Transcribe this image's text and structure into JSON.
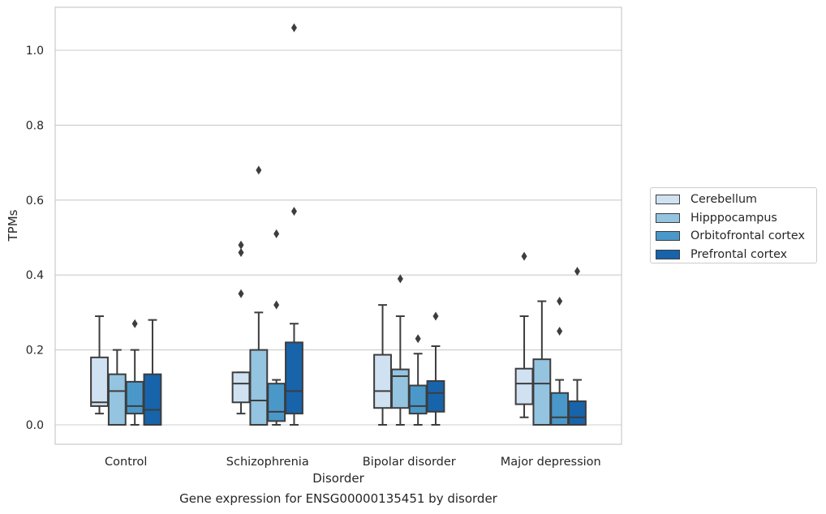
{
  "chart_data": {
    "type": "box",
    "title": "",
    "caption": "Gene expression for ENSG00000135451 by disorder",
    "xlabel": "Disorder",
    "ylabel": "TPMs",
    "ylim": [
      -0.05,
      1.12
    ],
    "yticks": [
      0.0,
      0.2,
      0.4,
      0.6,
      0.8,
      1.0
    ],
    "ytick_labels": [
      "0.0",
      "0.2",
      "0.4",
      "0.6",
      "0.8",
      "1.0"
    ],
    "grid": "horizontal",
    "legend_position": "right",
    "categories": [
      "Control",
      "Schizophrenia",
      "Bipolar disorder",
      "Major depression"
    ],
    "series": [
      {
        "name": "Cerebellum",
        "color": "#d0e1f2",
        "boxes": [
          {
            "whislo": 0.03,
            "q1": 0.05,
            "med": 0.06,
            "q3": 0.18,
            "whishi": 0.29,
            "fliers": []
          },
          {
            "whislo": 0.03,
            "q1": 0.06,
            "med": 0.11,
            "q3": 0.14,
            "whishi": 0.14,
            "fliers": [
              0.35,
              0.46,
              0.48
            ]
          },
          {
            "whislo": 0.0,
            "q1": 0.045,
            "med": 0.09,
            "q3": 0.187,
            "whishi": 0.32,
            "fliers": []
          },
          {
            "whislo": 0.02,
            "q1": 0.055,
            "med": 0.11,
            "q3": 0.15,
            "whishi": 0.29,
            "fliers": [
              0.45
            ]
          }
        ]
      },
      {
        "name": "Hipppocampus",
        "color": "#94c4df",
        "boxes": [
          {
            "whislo": 0.0,
            "q1": 0.0,
            "med": 0.09,
            "q3": 0.135,
            "whishi": 0.2,
            "fliers": []
          },
          {
            "whislo": 0.0,
            "q1": 0.0,
            "med": 0.065,
            "q3": 0.2,
            "whishi": 0.3,
            "fliers": [
              0.68
            ]
          },
          {
            "whislo": 0.0,
            "q1": 0.045,
            "med": 0.13,
            "q3": 0.148,
            "whishi": 0.29,
            "fliers": [
              0.39
            ]
          },
          {
            "whislo": 0.0,
            "q1": 0.0,
            "med": 0.11,
            "q3": 0.175,
            "whishi": 0.33,
            "fliers": []
          }
        ]
      },
      {
        "name": "Orbitofrontal cortex",
        "color": "#4a98c9",
        "boxes": [
          {
            "whislo": 0.0,
            "q1": 0.03,
            "med": 0.05,
            "q3": 0.115,
            "whishi": 0.2,
            "fliers": [
              0.27
            ]
          },
          {
            "whislo": 0.0,
            "q1": 0.01,
            "med": 0.035,
            "q3": 0.11,
            "whishi": 0.12,
            "fliers": [
              0.32,
              0.51
            ]
          },
          {
            "whislo": 0.0,
            "q1": 0.03,
            "med": 0.05,
            "q3": 0.105,
            "whishi": 0.19,
            "fliers": [
              0.23
            ]
          },
          {
            "whislo": 0.0,
            "q1": 0.0,
            "med": 0.02,
            "q3": 0.085,
            "whishi": 0.12,
            "fliers": [
              0.25,
              0.33
            ]
          }
        ]
      },
      {
        "name": "Prefrontal cortex",
        "color": "#1764ab",
        "boxes": [
          {
            "whislo": 0.0,
            "q1": 0.0,
            "med": 0.04,
            "q3": 0.135,
            "whishi": 0.28,
            "fliers": []
          },
          {
            "whislo": 0.0,
            "q1": 0.03,
            "med": 0.09,
            "q3": 0.22,
            "whishi": 0.27,
            "fliers": [
              0.57,
              1.06
            ]
          },
          {
            "whislo": 0.0,
            "q1": 0.035,
            "med": 0.085,
            "q3": 0.117,
            "whishi": 0.21,
            "fliers": [
              0.29
            ]
          },
          {
            "whislo": 0.0,
            "q1": 0.0,
            "med": 0.02,
            "q3": 0.063,
            "whishi": 0.12,
            "fliers": [
              0.41
            ]
          }
        ]
      }
    ]
  }
}
